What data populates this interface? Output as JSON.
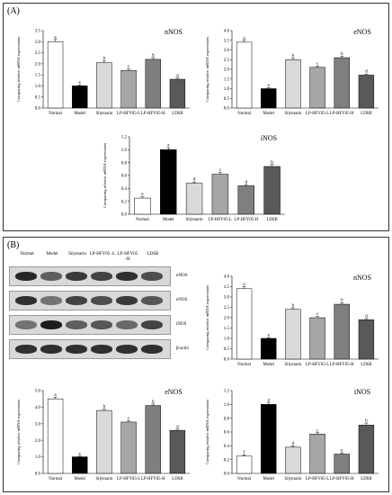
{
  "panels": {
    "a_label": "(A)",
    "b_label": "(B)"
  },
  "ylabel": "Comparing relative mRNA expressions",
  "blot": {
    "headers": [
      "Normal",
      "Model",
      "Silymarin",
      "LP-HFY05 L",
      "LP-HFY05 H",
      "LDSB"
    ],
    "header_lines": [
      [
        "Normal"
      ],
      [
        "Model"
      ],
      [
        "Silymarin"
      ],
      [
        "LP-HFY05 -L"
      ],
      [
        "LP-HFY05",
        "-H"
      ],
      [
        "LDSB"
      ]
    ],
    "rows": [
      {
        "label": "nNOS",
        "intensity": [
          0.85,
          0.55,
          0.75,
          0.7,
          0.8,
          0.65
        ]
      },
      {
        "label": "eNOS",
        "intensity": [
          0.8,
          0.45,
          0.7,
          0.65,
          0.75,
          0.6
        ]
      },
      {
        "label": "iNOS",
        "intensity": [
          0.45,
          0.9,
          0.55,
          0.6,
          0.5,
          0.7
        ]
      },
      {
        "label": "β-actin",
        "intensity": [
          0.8,
          0.8,
          0.8,
          0.8,
          0.8,
          0.8
        ]
      }
    ]
  },
  "colors": {
    "normal": "#ffffff",
    "model": "#000000",
    "silymarin": "#d9d9d9",
    "lp_l": "#a6a6a6",
    "lp_h": "#7f7f7f",
    "ldsb": "#595959"
  },
  "chart_data": [
    {
      "id": "A-nNOS",
      "type": "bar",
      "title": "nNOS",
      "categories": [
        "Normal",
        "Model",
        "Silymarin",
        "LP-HFY05-L",
        "LP-HFY05-H",
        "LDSB"
      ],
      "values": [
        3.0,
        1.0,
        2.05,
        1.7,
        2.2,
        1.3
      ],
      "errors": [
        0.1,
        0.04,
        0.08,
        0.07,
        0.08,
        0.05
      ],
      "letters": [
        "a",
        "e",
        "b",
        "c",
        "b",
        "d"
      ],
      "ylim": [
        0,
        3.5
      ],
      "yticks": [
        0,
        0.5,
        1.0,
        1.5,
        2.0,
        2.5,
        3.0,
        3.5
      ],
      "decimals": 1
    },
    {
      "id": "A-eNOS",
      "type": "bar",
      "title": "eNOS",
      "categories": [
        "Normal",
        "Model",
        "Silymarin",
        "LP-HFY05-L",
        "LP-HFY05-H",
        "LDSB"
      ],
      "values": [
        3.4,
        1.0,
        2.5,
        2.1,
        2.6,
        1.7
      ],
      "errors": [
        0.1,
        0.05,
        0.08,
        0.06,
        0.07,
        0.06
      ],
      "letters": [
        "a",
        "e",
        "b",
        "c",
        "b",
        "d"
      ],
      "ylim": [
        0,
        4.0
      ],
      "yticks": [
        0,
        0.5,
        1.0,
        1.5,
        2.0,
        2.5,
        3.0,
        3.5,
        4.0
      ],
      "decimals": 1
    },
    {
      "id": "A-iNOS",
      "type": "bar",
      "title": "iNOS",
      "categories": [
        "Normal",
        "Model",
        "Silymarin",
        "LP-HFY05-L",
        "LP-HFY05-H",
        "LDSB"
      ],
      "values": [
        0.25,
        1.0,
        0.48,
        0.62,
        0.44,
        0.74
      ],
      "errors": [
        0.02,
        0.03,
        0.02,
        0.03,
        0.02,
        0.03
      ],
      "letters": [
        "e",
        "a",
        "d",
        "c",
        "d",
        "b"
      ],
      "ylim": [
        0,
        1.2
      ],
      "yticks": [
        0,
        0.2,
        0.4,
        0.6,
        0.8,
        1.0,
        1.2
      ],
      "decimals": 1
    },
    {
      "id": "B-nNOS",
      "type": "bar",
      "title": "nNOS",
      "categories": [
        "Normal",
        "Model",
        "Silymarin",
        "LP-HFY05-L",
        "LP-HFY05-H",
        "LDSB"
      ],
      "values": [
        3.4,
        1.0,
        2.4,
        2.0,
        2.65,
        1.9
      ],
      "errors": [
        0.1,
        0.04,
        0.08,
        0.06,
        0.08,
        0.06
      ],
      "letters": [
        "a",
        "e",
        "b",
        "c",
        "b",
        "d"
      ],
      "ylim": [
        0,
        4.0
      ],
      "yticks": [
        0,
        0.5,
        1.0,
        1.5,
        2.0,
        2.5,
        3.0,
        3.5,
        4.0
      ],
      "decimals": 1
    },
    {
      "id": "B-eNOS",
      "type": "bar",
      "title": "eNOS",
      "categories": [
        "Normal",
        "Model",
        "Silymarin",
        "LP-HFY05-L",
        "LP-HFY05-H",
        "LDSB"
      ],
      "values": [
        4.5,
        1.0,
        3.8,
        3.1,
        4.1,
        2.6
      ],
      "errors": [
        0.1,
        0.04,
        0.08,
        0.08,
        0.09,
        0.07
      ],
      "letters": [
        "a",
        "e",
        "b",
        "c",
        "b",
        "d"
      ],
      "ylim": [
        0,
        5.0
      ],
      "yticks": [
        0,
        1.0,
        2.0,
        3.0,
        4.0,
        5.0
      ],
      "decimals": 1
    },
    {
      "id": "B-iNOS",
      "type": "bar",
      "title": "iNOS",
      "categories": [
        "Normal",
        "Model",
        "Silymarin",
        "LP-HFY05-L",
        "LP-HFY05-H",
        "LDSB"
      ],
      "values": [
        0.25,
        1.0,
        0.38,
        0.57,
        0.28,
        0.7
      ],
      "errors": [
        0.02,
        0.03,
        0.02,
        0.02,
        0.02,
        0.03
      ],
      "letters": [
        "f",
        "a",
        "d",
        "c",
        "e",
        "b"
      ],
      "ylim": [
        0,
        1.2
      ],
      "yticks": [
        0,
        0.2,
        0.4,
        0.6,
        0.8,
        1.0,
        1.2
      ],
      "decimals": 1
    }
  ]
}
